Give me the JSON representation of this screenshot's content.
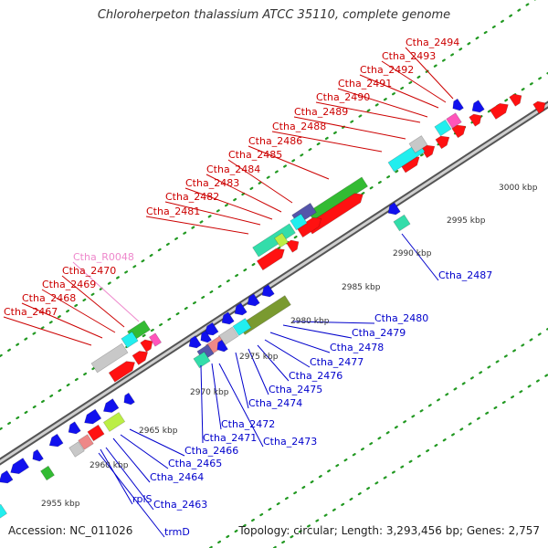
{
  "title": "Chloroherpeton thalassium ATCC 35110, complete genome",
  "footer": {
    "accession_label": "Accession:",
    "accession": "NC_011026",
    "topology_label": "Topology:",
    "topology": "circular",
    "length_label": "Length:",
    "length": "3,293,456 bp",
    "genes_label": "Genes:",
    "genes": "2,757"
  },
  "colors": {
    "forward_label": "#cc0000",
    "reverse_label": "#0000cc",
    "rna_label": "#ee88cc",
    "backbone": "#888888",
    "ticks": "#229922",
    "gene_red": "#ff1111",
    "gene_blue": "#1111ee",
    "gene_gray": "#c8c8c8",
    "gene_cyan": "#22eeee",
    "gene_green": "#33bb33",
    "gene_olive": "#7a9a30",
    "gene_pink": "#ff55bb",
    "gene_purple": "#5555aa",
    "gene_teal": "#33ddaa",
    "gene_salmon": "#ee8888",
    "gene_lime": "#bbee44"
  },
  "kbp_labels": [
    "2955 kbp",
    "2960 kbp",
    "2965 kbp",
    "2970 kbp",
    "2975 kbp",
    "2980 kbp",
    "2985 kbp",
    "2990 kbp",
    "2995 kbp",
    "3000 kbp"
  ],
  "forward_labels": [
    "Ctha_2467",
    "Ctha_2468",
    "Ctha_2469",
    "Ctha_2470",
    "Ctha_2481",
    "Ctha_2482",
    "Ctha_2483",
    "Ctha_2484",
    "Ctha_2485",
    "Ctha_2486",
    "Ctha_2488",
    "Ctha_2489",
    "Ctha_2490",
    "Ctha_2491",
    "Ctha_2492",
    "Ctha_2493",
    "Ctha_2494"
  ],
  "rna_labels": [
    "Ctha_R0048"
  ],
  "reverse_labels": [
    "Ctha_2480",
    "Ctha_2479",
    "Ctha_2478",
    "Ctha_2477",
    "Ctha_2476",
    "Ctha_2475",
    "Ctha_2474",
    "Ctha_2473",
    "Ctha_2472",
    "Ctha_2471",
    "Ctha_2466",
    "Ctha_2465",
    "Ctha_2464",
    "Ctha_2463",
    "rplS",
    "trmD",
    "Ctha_2487"
  ]
}
